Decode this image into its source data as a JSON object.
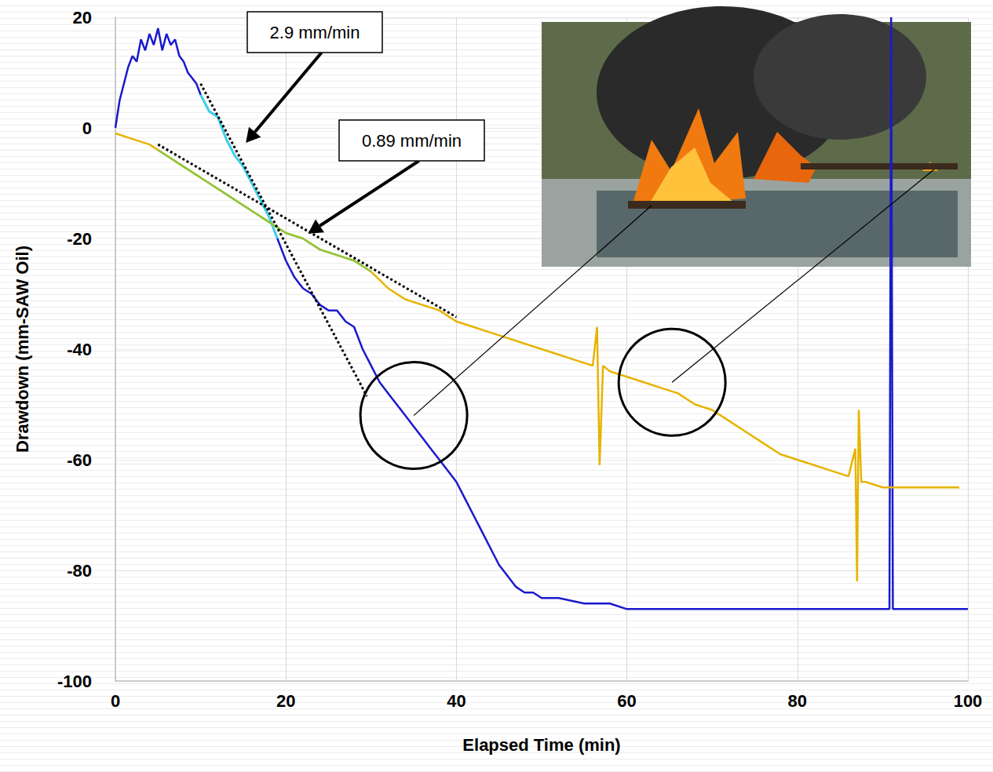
{
  "chart_data": {
    "type": "line",
    "x_label": "Elapsed Time (min)",
    "y_label": "Drawdown (mm-SAW Oil)",
    "xlim": [
      0,
      100
    ],
    "xticks": [
      0,
      20,
      40,
      60,
      80,
      100
    ],
    "ylim": [
      -100,
      20
    ],
    "yticks": [
      -100,
      -80,
      -60,
      -40,
      -20,
      0,
      20
    ],
    "grid": true,
    "series": [
      {
        "color": "#1a1acc",
        "line_style": "solid",
        "x": [
          0,
          0.5,
          1,
          1.5,
          2,
          2.5,
          3,
          3.5,
          4,
          4.5,
          5,
          5.5,
          6,
          6.5,
          7,
          7.5,
          8,
          8.5,
          9,
          9.5,
          10,
          11,
          12,
          13,
          14,
          15,
          16,
          17,
          18,
          19,
          20,
          21,
          22,
          23,
          24,
          25,
          26,
          27,
          28,
          29,
          30,
          31,
          32,
          33,
          34,
          35,
          36,
          37,
          38,
          39,
          40,
          41,
          42,
          43,
          44,
          45,
          46,
          47,
          48,
          49,
          50,
          52,
          55,
          58,
          60,
          65,
          70,
          75,
          80,
          85,
          90,
          90.8,
          91,
          91.2,
          95,
          100
        ],
        "values": [
          0,
          5,
          8,
          11,
          13,
          12,
          16,
          14,
          17,
          15,
          18,
          14,
          17,
          15,
          16,
          13,
          12,
          10,
          9,
          8,
          6,
          3,
          2,
          -2,
          -5,
          -7,
          -10,
          -13,
          -16,
          -20,
          -24,
          -27,
          -29,
          -30,
          -32,
          -33,
          -33,
          -35,
          -36,
          -40,
          -43,
          -46,
          -48,
          -50,
          -52,
          -54,
          -56,
          -58,
          -60,
          -62,
          -64,
          -67,
          -70,
          -73,
          -76,
          -79,
          -81,
          -83,
          -84,
          -84,
          -85,
          -85,
          -86,
          -86,
          -87,
          -87,
          -87,
          -87,
          -87,
          -87,
          -87,
          -87,
          20,
          -87,
          -87,
          -87
        ]
      },
      {
        "color": "#33e0e8",
        "line_style": "solid",
        "x": [
          10,
          11,
          12,
          13,
          14,
          15,
          16,
          17,
          18,
          19
        ],
        "values": [
          6,
          3,
          2,
          -2,
          -5,
          -7,
          -10,
          -13,
          -16,
          -20
        ]
      },
      {
        "color": "#e6b400",
        "line_style": "solid",
        "x": [
          0,
          2,
          4,
          6,
          8,
          10,
          12,
          14,
          16,
          18,
          20,
          22,
          24,
          26,
          28,
          30,
          32,
          34,
          36,
          38,
          40,
          42,
          44,
          46,
          48,
          50,
          52,
          54,
          56,
          56.5,
          56.8,
          57.2,
          58,
          60,
          62,
          64,
          66,
          68,
          70,
          72,
          74,
          76,
          78,
          80,
          82,
          84,
          86,
          86.8,
          87,
          87.2,
          87.5,
          88,
          90,
          92,
          95,
          99
        ],
        "values": [
          -1,
          -2,
          -3,
          -5,
          -7,
          -9,
          -11,
          -13,
          -15,
          -17,
          -19,
          -20,
          -22,
          -23,
          -24,
          -26,
          -29,
          -31,
          -32,
          -33,
          -35,
          -36,
          -37,
          -38,
          -39,
          -40,
          -41,
          -42,
          -43,
          -36,
          -61,
          -43,
          -44,
          -45,
          -46,
          -47,
          -48,
          -50,
          -51,
          -53,
          -55,
          -57,
          -59,
          -60,
          -61,
          -62,
          -63,
          -58,
          -82,
          -51,
          -64,
          -64,
          -65,
          -65,
          -65,
          -65
        ]
      },
      {
        "color": "#8cc63f",
        "line_style": "solid",
        "x": [
          5,
          6,
          8,
          10,
          12,
          14,
          16,
          18,
          20,
          22,
          24,
          26,
          28,
          30
        ],
        "values": [
          -4,
          -5,
          -7,
          -9,
          -11,
          -13,
          -15,
          -17,
          -19,
          -20,
          -22,
          -23,
          -24,
          -26
        ]
      },
      {
        "color": "#000000",
        "line_style": "dotted",
        "x": [
          10,
          29.5
        ],
        "values": [
          8,
          -48.5
        ]
      },
      {
        "color": "#000000",
        "line_style": "dotted",
        "x": [
          5,
          40
        ],
        "values": [
          -3,
          -34.2
        ]
      }
    ],
    "annotations": [
      {
        "text": "2.9 mm/min",
        "arrow_to": [
          15.3,
          -2.7
        ]
      },
      {
        "text": "0.89 mm/min",
        "arrow_to": [
          22.6,
          -19.1
        ]
      }
    ],
    "highlights": [
      {
        "x": 35,
        "y": -52
      },
      {
        "x": 65.3,
        "y": -46
      }
    ]
  }
}
